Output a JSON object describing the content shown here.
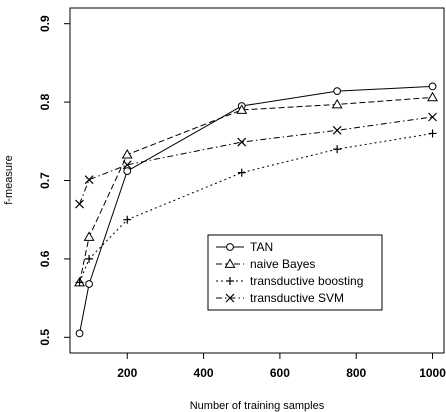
{
  "chart_data": {
    "type": "line",
    "title": "",
    "xlabel": "Number of training samples",
    "ylabel": "f-measure",
    "xlim": [
      50,
      1030
    ],
    "ylim": [
      0.48,
      0.92
    ],
    "x_ticks": [
      200,
      400,
      600,
      800,
      1000
    ],
    "x_tick_labels": [
      "200",
      "400",
      "600",
      "800",
      "1000"
    ],
    "y_ticks": [
      0.5,
      0.6,
      0.7,
      0.8,
      0.9
    ],
    "y_tick_labels": [
      "0.5",
      "0.6",
      "0.7",
      "0.8",
      "0.9"
    ],
    "grid": false,
    "legend_position": "center-right",
    "x": [
      75,
      100,
      200,
      500,
      750,
      1000
    ],
    "series": [
      {
        "name": "TAN",
        "values": [
          0.505,
          0.568,
          0.712,
          0.795,
          0.814,
          0.82
        ],
        "marker": "circle",
        "dash": "solid"
      },
      {
        "name": "naive Bayes",
        "values": [
          0.57,
          0.628,
          0.733,
          0.79,
          0.797,
          0.806
        ],
        "marker": "triangle",
        "dash": "dashed"
      },
      {
        "name": "transductive boosting",
        "values": [
          0.57,
          0.6,
          0.65,
          0.71,
          0.74,
          0.76
        ],
        "marker": "plus",
        "dash": "dotted"
      },
      {
        "name": "transductive SVM",
        "values": [
          0.67,
          0.701,
          0.72,
          0.749,
          0.764,
          0.781
        ],
        "marker": "cross",
        "dash": "dashdot"
      }
    ],
    "colors": {
      "line": "#000000",
      "background": "#ffffff"
    }
  }
}
